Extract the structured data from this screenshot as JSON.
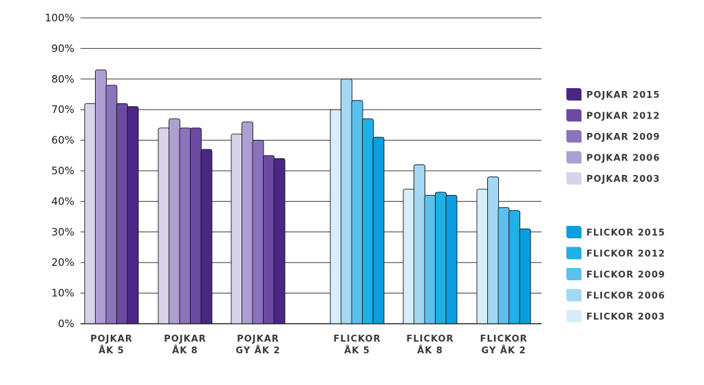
{
  "chart_data": {
    "type": "bar",
    "ylim": [
      0,
      100
    ],
    "y_ticks": [
      "0%",
      "10%",
      "20%",
      "30%",
      "40%",
      "50%",
      "60%",
      "70%",
      "80%",
      "90%",
      "100%"
    ],
    "grid": true,
    "legend_placement": "right",
    "groups": [
      {
        "categories": [
          [
            "POJKAR",
            "ÅK 5"
          ],
          [
            "POJKAR",
            "ÅK 8"
          ],
          [
            "POJKAR",
            "GY ÅK 2"
          ]
        ],
        "series": [
          {
            "name": "POJKAR 2003",
            "color": "#d9d3ea",
            "values": [
              72,
              64,
              62
            ]
          },
          {
            "name": "POJKAR 2006",
            "color": "#ae9fd3",
            "values": [
              83,
              67,
              66
            ]
          },
          {
            "name": "POJKAR 2009",
            "color": "#8c73be",
            "values": [
              78,
              64,
              60
            ]
          },
          {
            "name": "POJKAR 2012",
            "color": "#6a4aa3",
            "values": [
              72,
              64,
              55
            ]
          },
          {
            "name": "POJKAR 2015",
            "color": "#4b2784",
            "values": [
              71,
              57,
              54
            ]
          }
        ]
      },
      {
        "categories": [
          [
            "FLICKOR",
            "ÅK 5"
          ],
          [
            "FLICKOR",
            "ÅK 8"
          ],
          [
            "FLICKOR",
            "GY ÅK 2"
          ]
        ],
        "series": [
          {
            "name": "FLICKOR 2003",
            "color": "#d6eef9",
            "values": [
              70,
              44,
              44
            ]
          },
          {
            "name": "FLICKOR 2006",
            "color": "#a2d8f2",
            "values": [
              80,
              52,
              48
            ]
          },
          {
            "name": "FLICKOR 2009",
            "color": "#5cc0ec",
            "values": [
              73,
              42,
              38
            ]
          },
          {
            "name": "FLICKOR 2012",
            "color": "#1fb0e6",
            "values": [
              67,
              43,
              37
            ]
          },
          {
            "name": "FLICKOR 2015",
            "color": "#0a9ddf",
            "values": [
              61,
              42,
              31
            ]
          }
        ]
      }
    ]
  }
}
